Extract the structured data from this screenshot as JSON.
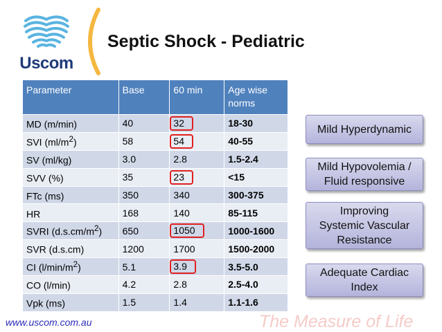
{
  "brand": {
    "logo_text": "Uscom",
    "logo_color": "#1e3a78",
    "heart_color": "#5ab4e0",
    "paren_color": "#f5b740"
  },
  "title": "Septic Shock - Pediatric",
  "table": {
    "headers": {
      "param": "Parameter",
      "base": "Base",
      "min60": "60 min",
      "norms": "Age wise norms"
    },
    "rows": [
      {
        "label": "MD (m/min)",
        "sup": "",
        "label_end": "",
        "base": "40",
        "min60": "32",
        "norm": "18-30",
        "highlight": true
      },
      {
        "label": "SVI (ml/m",
        "sup": "2",
        "label_end": ")",
        "base": "58",
        "min60": "54",
        "norm": "40-55",
        "highlight": true
      },
      {
        "label": "SV (ml/kg)",
        "sup": "",
        "label_end": "",
        "base": "3.0",
        "min60": "2.8",
        "norm": "1.5-2.4",
        "highlight": false
      },
      {
        "label": "SVV (%)",
        "sup": "",
        "label_end": "",
        "base": "35",
        "min60": "23",
        "norm": "<15",
        "highlight": true
      },
      {
        "label": "FTc (ms)",
        "sup": "",
        "label_end": "",
        "base": "350",
        "min60": "340",
        "norm": "300-375",
        "highlight": false
      },
      {
        "label": "HR",
        "sup": "",
        "label_end": "",
        "base": "168",
        "min60": "140",
        "norm": "85-115",
        "highlight": false
      },
      {
        "label": "SVRI (d.s.cm/m",
        "sup": "2",
        "label_end": ")",
        "base": "650",
        "min60": "1050",
        "norm": "1000-1600",
        "highlight": true
      },
      {
        "label": "SVR (d.s.cm)",
        "sup": "",
        "label_end": "",
        "base": "1200",
        "min60": "1700",
        "norm": "1500-2000",
        "highlight": false
      },
      {
        "label": "CI (l/min/m",
        "sup": "2",
        "label_end": ")",
        "base": "5.1",
        "min60": "3.9",
        "norm": "3.5-5.0",
        "highlight": true
      },
      {
        "label": "CO (l/min)",
        "sup": "",
        "label_end": "",
        "base": "4.2",
        "min60": "2.8",
        "norm": "2.5-4.0",
        "highlight": false
      },
      {
        "label": "Vpk (ms)",
        "sup": "",
        "label_end": "",
        "base": "1.5",
        "min60": "1.4",
        "norm": "1.1-1.6",
        "highlight": false
      }
    ]
  },
  "boxes": {
    "b1": {
      "line1": "Mild Hyperdynamic"
    },
    "b2": {
      "line1": "Mild Hypovolemia /",
      "line2": "Fluid responsive"
    },
    "b3": {
      "line1": "Improving",
      "line2": "Systemic Vascular",
      "line3": "Resistance"
    },
    "b4": {
      "line1": "Adequate Cardiac",
      "line2": "Index"
    }
  },
  "footer": {
    "url": "www.uscom.com.au",
    "tagline": "The Measure of Life"
  }
}
